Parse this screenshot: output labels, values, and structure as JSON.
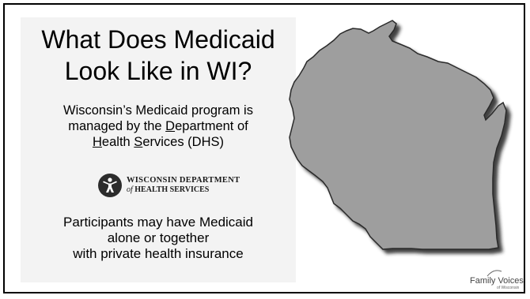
{
  "slide": {
    "title_line1": "What Does Medicaid",
    "title_line2": "Look  Like in WI?",
    "body1_line1": "Wisconsin’s Medicaid program is",
    "body1_line2_pre": "managed by the ",
    "body1_line2_u": "D",
    "body1_line2_post": "epartment of",
    "body1_line3_u1": "H",
    "body1_line3_mid1": "ealth ",
    "body1_line3_u2": "S",
    "body1_line3_post": "ervices (DHS)",
    "body2_line1": "Participants may have Medicaid",
    "body2_line2": "alone or together",
    "body2_line3": "with private health insurance"
  },
  "dhs_logo": {
    "line1": "WISCONSIN DEPARTMENT",
    "line2_italic": "of",
    "line2_rest": " HEALTH SERVICES"
  },
  "footer_logo": {
    "text": "Family Voices",
    "subtext": "of Wisconsin"
  },
  "colors": {
    "panel_bg": "#f3f3f3",
    "map_fill": "#9e9e9e",
    "map_shadow": "#1a1a1a",
    "border": "#000000"
  }
}
